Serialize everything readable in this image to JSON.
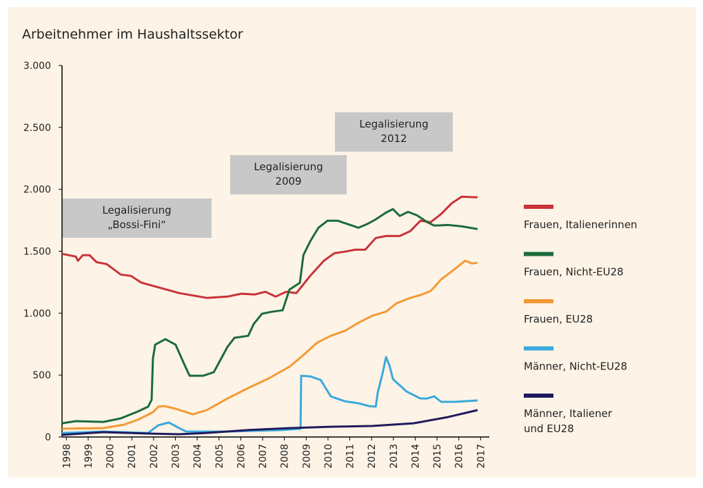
{
  "chart_data": {
    "type": "line",
    "title": "Arbeitnehmer im Haushaltssektor",
    "xlim": [
      1997.8,
      2017.4
    ],
    "xticks": [
      1998,
      1999,
      2000,
      2001,
      2002,
      2003,
      2004,
      2005,
      2006,
      2007,
      2008,
      2009,
      2010,
      2011,
      2012,
      2013,
      2014,
      2015,
      2016,
      2017
    ],
    "ylim": [
      0,
      3000
    ],
    "yticks": [
      0,
      500,
      {
        "value": 1000,
        "label": "1.000"
      },
      {
        "value": 1500,
        "label": "1.500"
      },
      {
        "value": 2000,
        "label": "2.000"
      },
      {
        "value": 2500,
        "label": "2.500"
      },
      {
        "value": 3000,
        "label": "3.000"
      }
    ],
    "annotations": [
      [
        "Legalisierung",
        "„Bossi-Fini“"
      ],
      [
        "Legalisierung",
        "2009"
      ],
      [
        "Legalisierung",
        "2012"
      ]
    ],
    "series": [
      {
        "name": "Frauen, Italienerinnen",
        "color": "#c8323a",
        "x": [
          1997.8,
          1998.43,
          1998.53,
          1998.75,
          1999.06,
          1999.38,
          1999.85,
          2000.49,
          2000.96,
          2001.44,
          2003.17,
          2004.44,
          2005.39,
          2006.02,
          2006.65,
          2007.13,
          2007.6,
          2008.08,
          2008.55,
          2009.18,
          2009.81,
          2010.29,
          2010.76,
          2011.24,
          2011.71,
          2012.19,
          2012.66,
          2013.29,
          2013.77,
          2014.24,
          2014.71,
          2015.19,
          2015.66,
          2016.13,
          2016.86
        ],
        "values": [
          1479,
          1457,
          1423,
          1468,
          1468,
          1412,
          1396,
          1312,
          1301,
          1246,
          1162,
          1123,
          1134,
          1157,
          1151,
          1173,
          1134,
          1173,
          1162,
          1301,
          1423,
          1484,
          1496,
          1512,
          1512,
          1607,
          1623,
          1623,
          1662,
          1746,
          1735,
          1801,
          1885,
          1940,
          1935
        ]
      },
      {
        "name": "Frauen, Nicht-EU28",
        "color": "#1b6b3a",
        "x": [
          1997.8,
          1998.43,
          1999.7,
          2000.49,
          2001.28,
          2001.75,
          2001.91,
          2001.97,
          2002.07,
          2002.54,
          2003.01,
          2003.43,
          2003.65,
          2004.28,
          2004.76,
          2005.39,
          2005.71,
          2006.34,
          2006.59,
          2006.97,
          2007.44,
          2007.92,
          2008.23,
          2008.71,
          2008.87,
          2009.18,
          2009.56,
          2009.97,
          2010.45,
          2010.92,
          2011.4,
          2011.78,
          2012.19,
          2012.66,
          2012.98,
          2013.29,
          2013.67,
          2014.08,
          2014.55,
          2014.87,
          2015.5,
          2016.13,
          2016.86
        ],
        "values": [
          111,
          128,
          122,
          150,
          206,
          245,
          300,
          634,
          745,
          790,
          745,
          578,
          495,
          495,
          523,
          728,
          801,
          817,
          912,
          995,
          1012,
          1023,
          1190,
          1245,
          1468,
          1579,
          1690,
          1746,
          1746,
          1718,
          1690,
          1718,
          1757,
          1812,
          1840,
          1785,
          1818,
          1790,
          1735,
          1707,
          1712,
          1701,
          1679
        ]
      },
      {
        "name": "Frauen, EU28",
        "color": "#f39a34",
        "x": [
          1997.8,
          1999.7,
          2000.65,
          2001.28,
          2001.97,
          2002.22,
          2002.48,
          2003.01,
          2003.8,
          2004.44,
          2005.39,
          2006.34,
          2007.28,
          2008.23,
          2008.87,
          2009.5,
          2010.13,
          2010.76,
          2011.4,
          2012.03,
          2012.66,
          2013.14,
          2013.77,
          2014.24,
          2014.71,
          2015.19,
          2015.82,
          2016.29,
          2016.61,
          2016.86
        ],
        "values": [
          67,
          72,
          100,
          139,
          200,
          245,
          250,
          228,
          183,
          217,
          311,
          395,
          473,
          567,
          662,
          762,
          817,
          856,
          923,
          979,
          1012,
          1079,
          1123,
          1146,
          1179,
          1273,
          1357,
          1423,
          1401,
          1407
        ]
      },
      {
        "name": "Männer, Nicht-EU28",
        "color": "#3aa9dc",
        "x": [
          1997.8,
          1999.7,
          2001.75,
          2002.22,
          2002.7,
          2003.11,
          2003.49,
          2005.39,
          2007.92,
          2008.74,
          2008.77,
          2009.18,
          2009.66,
          2010.13,
          2010.76,
          2011.4,
          2011.87,
          2012.19,
          2012.28,
          2012.5,
          2012.66,
          2012.82,
          2012.98,
          2013.61,
          2014.24,
          2014.55,
          2014.87,
          2015.19,
          2015.82,
          2016.86
        ],
        "values": [
          33,
          44,
          33,
          95,
          117,
          78,
          44,
          44,
          56,
          67,
          495,
          489,
          461,
          328,
          289,
          272,
          250,
          245,
          356,
          512,
          645,
          578,
          467,
          367,
          311,
          311,
          328,
          284,
          284,
          295
        ]
      },
      {
        "name": "Männer, Italiener\nund EU28",
        "color": "#1f1a5e",
        "x": [
          1997.8,
          1999.7,
          2001.75,
          2003.17,
          2004.44,
          2006.34,
          2008.23,
          2010.13,
          2012.03,
          2013.93,
          2015.5,
          2016.86
        ],
        "values": [
          17,
          39,
          28,
          22,
          33,
          56,
          72,
          83,
          89,
          111,
          161,
          217
        ]
      }
    ]
  }
}
